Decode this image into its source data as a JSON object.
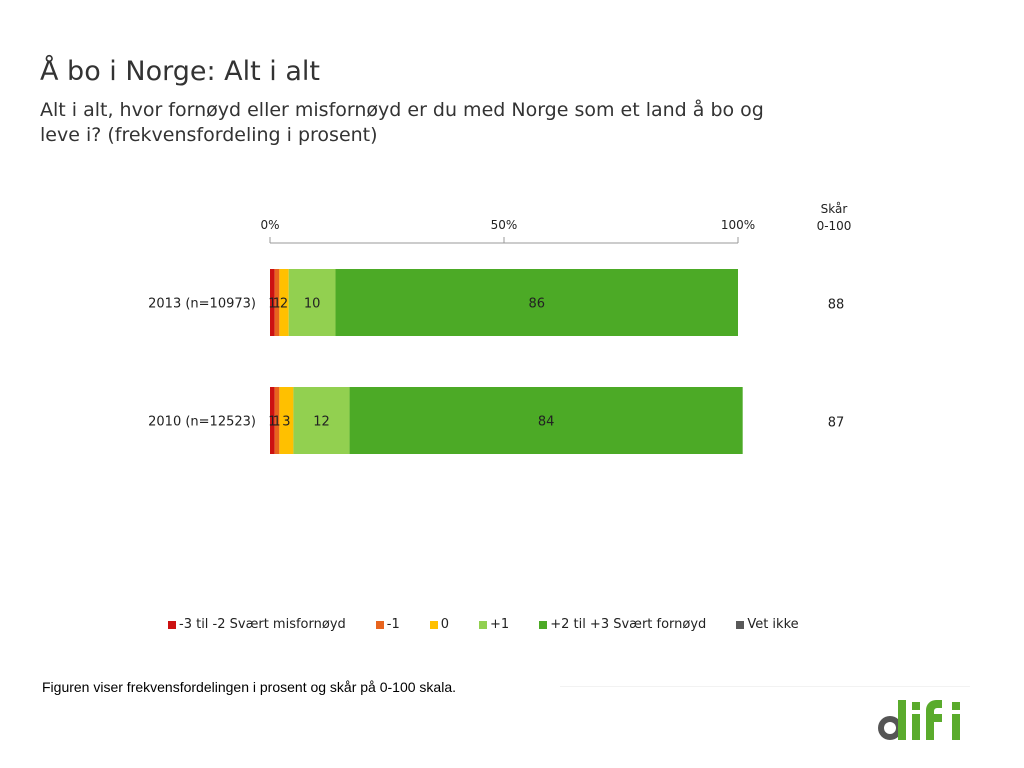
{
  "header": {
    "title": "Å bo i Norge: Alt i alt",
    "subtitle": "Alt i alt, hvor fornøyd eller misfornøyd er du med Norge som et land å bo og leve i? (frekvensfordeling i prosent)"
  },
  "chart_data": {
    "type": "bar",
    "orientation": "horizontal",
    "stacked": true,
    "xlim": [
      0,
      100
    ],
    "x_ticks": [
      "0%",
      "50%",
      "100%"
    ],
    "categories": [
      "2013 (n=10973)",
      "2010 (n=12523)"
    ],
    "series": [
      {
        "name": "-3 til -2 Svært misfornøyd",
        "color": "#cc1111",
        "values": [
          1,
          1
        ],
        "labels": [
          "1",
          "1"
        ]
      },
      {
        "name": "-1",
        "color": "#e8641e",
        "values": [
          1,
          1
        ],
        "labels": [
          "1",
          "1"
        ]
      },
      {
        "name": "0",
        "color": "#ffc000",
        "values": [
          2,
          3
        ],
        "labels": [
          "2",
          "3"
        ]
      },
      {
        "name": "+1",
        "color": "#92d050",
        "values": [
          10,
          12
        ],
        "labels": [
          "10",
          "12"
        ]
      },
      {
        "name": "+2 til +3 Svært fornøyd",
        "color": "#4caa26",
        "values": [
          86,
          84
        ],
        "labels": [
          "86",
          "84"
        ]
      },
      {
        "name": "Vet ikke",
        "color": "#595959",
        "values": [
          0,
          0
        ],
        "labels": [
          "",
          ""
        ]
      }
    ],
    "score_header": [
      "Skår",
      "0-100"
    ],
    "scores": [
      "88",
      "87"
    ],
    "legend_position": "bottom"
  },
  "footnote": "Figuren viser frekvensfordelingen i prosent og skår på 0-100 skala.",
  "logo": {
    "text": "difi",
    "colors": {
      "d_circle": "#555555",
      "letters": "#5aab2c"
    }
  }
}
